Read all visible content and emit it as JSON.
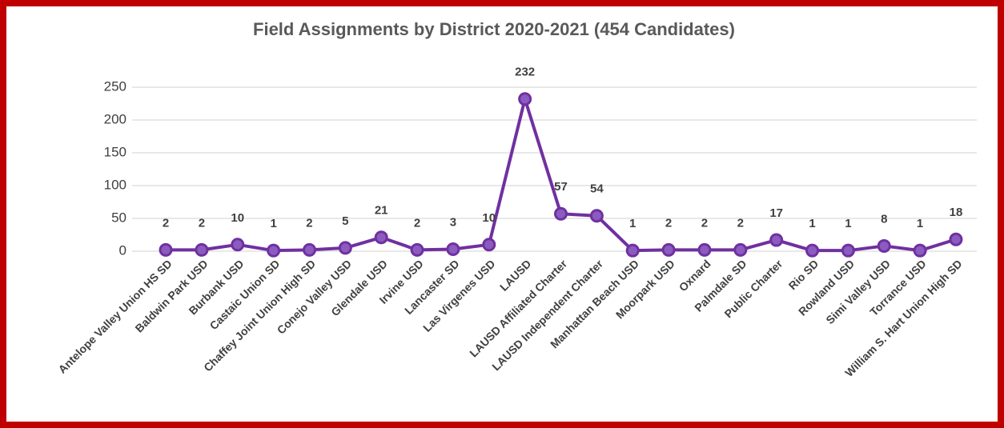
{
  "chart_data": {
    "type": "line",
    "title": "Field Assignments by District 2020-2021 (454 Candidates)",
    "categories": [
      "Antelope Valley Union HS SD",
      "Baldwin Park USD",
      "Burbank USD",
      "Castaic Union SD",
      "Chaffey Joint Union High SD",
      "Conejo Valley USD",
      "Glendale USD",
      "Irvine USD",
      "Lancaster SD",
      "Las Virgenes USD",
      "LAUSD",
      "LAUSD Affiliated Charter",
      "LAUSD Independent Charter",
      "Manhattan Beach USD",
      "Moorpark USD",
      "Oxnard",
      "Palmdale SD",
      "Public Charter",
      "Rio SD",
      "Rowland USD",
      "Simi Valley USD",
      "Torrance USD",
      "William S. Hart Union High SD"
    ],
    "values": [
      2,
      2,
      10,
      1,
      2,
      5,
      21,
      2,
      3,
      10,
      232,
      57,
      54,
      1,
      2,
      2,
      2,
      17,
      1,
      1,
      8,
      1,
      18
    ],
    "color": "#7030a0",
    "ylim": [
      0,
      250
    ],
    "yticks": [
      0,
      50,
      100,
      150,
      200,
      250
    ],
    "grid": true
  }
}
